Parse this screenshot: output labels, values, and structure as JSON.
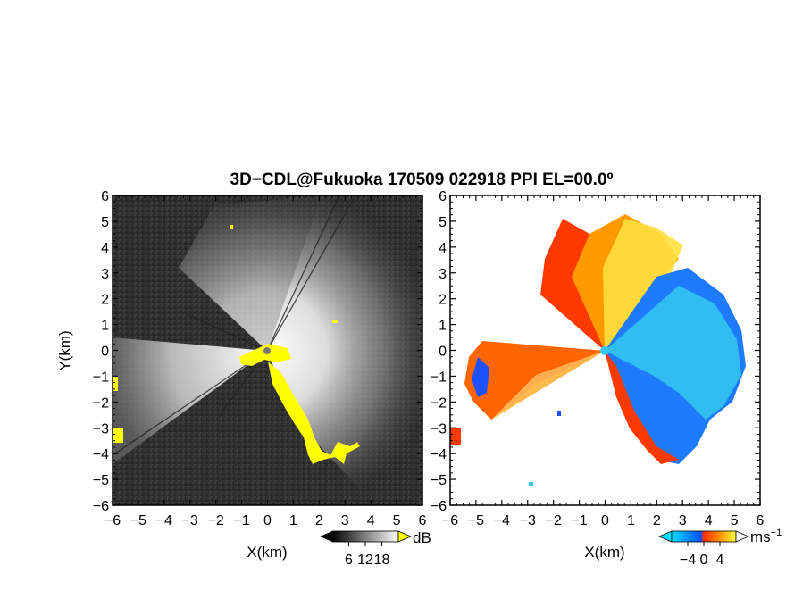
{
  "title": "3D−CDL@Fukuoka 170509 022918 PPI EL=00.0º",
  "chart_data": [
    {
      "type": "heatmap",
      "panel": "reflectivity",
      "xlabel": "X(km)",
      "ylabel": "Y(km)",
      "xlim": [
        -6,
        6
      ],
      "ylim": [
        -6,
        6
      ],
      "x_ticks": [
        -6,
        -5,
        -4,
        -3,
        -2,
        -1,
        0,
        1,
        2,
        3,
        4,
        5,
        6
      ],
      "y_ticks": [
        -6,
        -5,
        -4,
        -3,
        -2,
        -1,
        0,
        1,
        2,
        3,
        4,
        5,
        6
      ],
      "x_tick_labels": [
        "−6",
        "−5",
        "−4",
        "−3",
        "−2",
        "−1",
        "0",
        "1",
        "2",
        "3",
        "4",
        "5",
        "6"
      ],
      "y_tick_labels": [
        "−6",
        "−5",
        "−4",
        "−3",
        "−2",
        "−1",
        "0",
        "1",
        "2",
        "3",
        "4",
        "5",
        "6"
      ],
      "colorbar": {
        "unit": "dB",
        "ticks": [
          6,
          12,
          18
        ],
        "colors": [
          "#000000",
          "#ffffff"
        ]
      },
      "radar_origin": [
        0,
        0
      ],
      "clutter_color": "#ffff00",
      "background_color": "#2e2e2e"
    },
    {
      "type": "heatmap",
      "panel": "doppler_velocity",
      "xlabel": "X(km)",
      "xlim": [
        -6,
        6
      ],
      "ylim": [
        -6,
        6
      ],
      "x_ticks": [
        -6,
        -5,
        -4,
        -3,
        -2,
        -1,
        0,
        1,
        2,
        3,
        4,
        5,
        6
      ],
      "x_tick_labels": [
        "−6",
        "−5",
        "−4",
        "−3",
        "−2",
        "−1",
        "0",
        "1",
        "2",
        "3",
        "4",
        "5",
        "6"
      ],
      "y_ticks": [
        -6,
        -5,
        -4,
        -3,
        -2,
        -1,
        0,
        1,
        2,
        3,
        4,
        5,
        6
      ],
      "y_tick_labels": [
        "−6",
        "−5",
        "−4",
        "−3",
        "−2",
        "−1",
        "0",
        "1",
        "2",
        "3",
        "4",
        "5",
        "6"
      ],
      "colorbar": {
        "unit": "ms⁻¹",
        "unit_text": "ms",
        "unit_sup": "−1",
        "ticks": [
          -4,
          0,
          4
        ],
        "tick_labels": [
          "−4",
          "0",
          "4"
        ],
        "colors": [
          "#00e0ff",
          "#0050ff",
          "#ff3000",
          "#ff9000",
          "#ffff40"
        ]
      },
      "radar_origin": [
        0,
        0
      ],
      "background_color": "#ffffff"
    }
  ]
}
